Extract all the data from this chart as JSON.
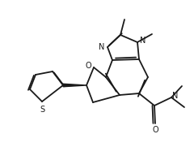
{
  "bg_color": "#ffffff",
  "line_color": "#1a1a1a",
  "line_width": 1.3,
  "figsize": [
    2.4,
    1.81
  ],
  "dpi": 100,
  "xlim": [
    0,
    240
  ],
  "ylim": [
    0,
    181
  ]
}
